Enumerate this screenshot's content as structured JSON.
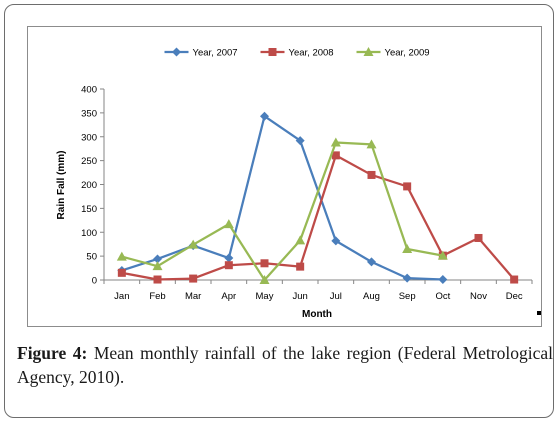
{
  "chart_data": {
    "type": "line",
    "title": "",
    "xlabel": "Month",
    "ylabel": "Rain Fall (mm)",
    "ylim": [
      0,
      400
    ],
    "yticks": [
      "0",
      "50",
      "100",
      "150",
      "200",
      "250",
      "300",
      "350",
      "400"
    ],
    "categories": [
      "Jan",
      "Feb",
      "Mar",
      "Apr",
      "May",
      "Jun",
      "Jul",
      "Aug",
      "Sep",
      "Oct",
      "Nov",
      "Dec"
    ],
    "legend_position": "top",
    "grid": false,
    "series": [
      {
        "name": "Year, 2007",
        "color": "#4a7ebb",
        "marker": "diamond",
        "values": [
          20,
          44,
          72,
          46,
          343,
          292,
          82,
          38,
          4,
          1,
          null,
          null
        ]
      },
      {
        "name": "Year, 2008",
        "color": "#be4b48",
        "marker": "square",
        "values": [
          15,
          1,
          3,
          31,
          35,
          28,
          261,
          220,
          196,
          51,
          88,
          1
        ]
      },
      {
        "name": "Year, 2009",
        "color": "#98b954",
        "marker": "triangle",
        "values": [
          49,
          29,
          74,
          117,
          0,
          83,
          288,
          284,
          65,
          51,
          null,
          null
        ]
      }
    ]
  },
  "caption": {
    "label": "Figure 4:",
    "text": " Mean monthly rainfall of the lake region (Federal Metrological Agency, 2010)."
  }
}
